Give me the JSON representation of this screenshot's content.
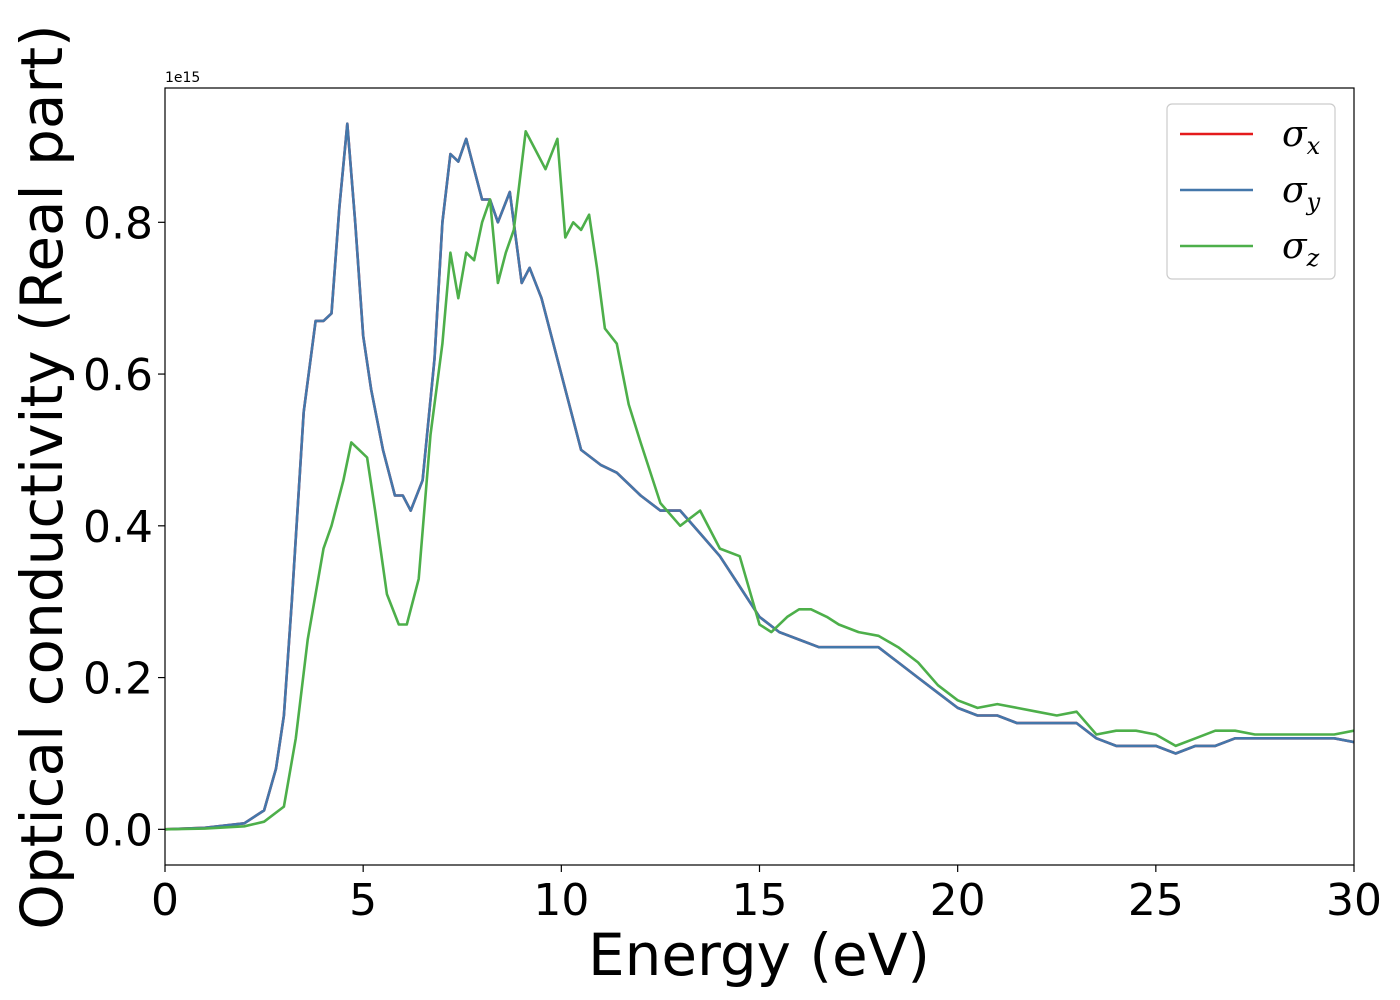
{
  "chart_data": {
    "type": "line",
    "xlabel": "Energy (eV)",
    "ylabel": "Optical conductivity (Real part)",
    "y_offset_text": "1e15",
    "xlim": [
      0,
      30
    ],
    "ylim": [
      -0.047,
      0.977
    ],
    "xticks": [
      0,
      5,
      10,
      15,
      20,
      25,
      30
    ],
    "xtick_labels": [
      "0",
      "5",
      "10",
      "15",
      "20",
      "25",
      "30"
    ],
    "yticks": [
      0.0,
      0.2,
      0.4,
      0.6,
      0.8
    ],
    "ytick_labels": [
      "0.0",
      "0.2",
      "0.4",
      "0.6",
      "0.8"
    ],
    "grid": false,
    "legend_position": "top-right",
    "series": [
      {
        "name": "σx",
        "legend_symbol": "σ",
        "legend_subscript": "x",
        "color": "#e41a1c",
        "x": [
          0,
          1,
          2,
          2.5,
          2.8,
          3.0,
          3.2,
          3.5,
          3.8,
          4.0,
          4.2,
          4.4,
          4.6,
          4.8,
          5.0,
          5.2,
          5.5,
          5.8,
          6.0,
          6.2,
          6.5,
          6.8,
          7.0,
          7.2,
          7.4,
          7.6,
          7.8,
          8.0,
          8.2,
          8.4,
          8.7,
          9.0,
          9.2,
          9.5,
          10.0,
          10.5,
          11.0,
          11.4,
          12.0,
          12.5,
          13.0,
          13.5,
          14.0,
          14.5,
          15.0,
          15.5,
          16.0,
          16.5,
          17.0,
          17.5,
          18.0,
          18.5,
          19.0,
          19.5,
          20.0,
          20.5,
          21.0,
          21.5,
          22.0,
          22.5,
          23.0,
          23.5,
          24.0,
          24.5,
          25.0,
          25.5,
          26.0,
          26.5,
          27.0,
          27.5,
          28.0,
          28.5,
          29.0,
          29.5,
          30.0
        ],
        "y": [
          0.0,
          0.002,
          0.008,
          0.025,
          0.08,
          0.15,
          0.3,
          0.55,
          0.67,
          0.67,
          0.68,
          0.82,
          0.93,
          0.8,
          0.65,
          0.58,
          0.5,
          0.44,
          0.44,
          0.42,
          0.46,
          0.62,
          0.8,
          0.89,
          0.88,
          0.91,
          0.87,
          0.83,
          0.83,
          0.8,
          0.84,
          0.72,
          0.74,
          0.7,
          0.6,
          0.5,
          0.48,
          0.47,
          0.44,
          0.42,
          0.42,
          0.39,
          0.36,
          0.32,
          0.28,
          0.26,
          0.25,
          0.24,
          0.24,
          0.24,
          0.24,
          0.22,
          0.2,
          0.18,
          0.16,
          0.15,
          0.15,
          0.14,
          0.14,
          0.14,
          0.14,
          0.12,
          0.11,
          0.11,
          0.11,
          0.1,
          0.11,
          0.11,
          0.12,
          0.12,
          0.12,
          0.12,
          0.12,
          0.12,
          0.115
        ]
      },
      {
        "name": "σy",
        "legend_symbol": "σ",
        "legend_subscript": "y",
        "color": "#4477aa",
        "x": [
          0,
          1,
          2,
          2.5,
          2.8,
          3.0,
          3.2,
          3.5,
          3.8,
          4.0,
          4.2,
          4.4,
          4.6,
          4.8,
          5.0,
          5.2,
          5.5,
          5.8,
          6.0,
          6.2,
          6.5,
          6.8,
          7.0,
          7.2,
          7.4,
          7.6,
          7.8,
          8.0,
          8.2,
          8.4,
          8.7,
          9.0,
          9.2,
          9.5,
          10.0,
          10.5,
          11.0,
          11.4,
          12.0,
          12.5,
          13.0,
          13.5,
          14.0,
          14.5,
          15.0,
          15.5,
          16.0,
          16.5,
          17.0,
          17.5,
          18.0,
          18.5,
          19.0,
          19.5,
          20.0,
          20.5,
          21.0,
          21.5,
          22.0,
          22.5,
          23.0,
          23.5,
          24.0,
          24.5,
          25.0,
          25.5,
          26.0,
          26.5,
          27.0,
          27.5,
          28.0,
          28.5,
          29.0,
          29.5,
          30.0
        ],
        "y": [
          0.0,
          0.002,
          0.008,
          0.025,
          0.08,
          0.15,
          0.3,
          0.55,
          0.67,
          0.67,
          0.68,
          0.82,
          0.93,
          0.8,
          0.65,
          0.58,
          0.5,
          0.44,
          0.44,
          0.42,
          0.46,
          0.62,
          0.8,
          0.89,
          0.88,
          0.91,
          0.87,
          0.83,
          0.83,
          0.8,
          0.84,
          0.72,
          0.74,
          0.7,
          0.6,
          0.5,
          0.48,
          0.47,
          0.44,
          0.42,
          0.42,
          0.39,
          0.36,
          0.32,
          0.28,
          0.26,
          0.25,
          0.24,
          0.24,
          0.24,
          0.24,
          0.22,
          0.2,
          0.18,
          0.16,
          0.15,
          0.15,
          0.14,
          0.14,
          0.14,
          0.14,
          0.12,
          0.11,
          0.11,
          0.11,
          0.1,
          0.11,
          0.11,
          0.12,
          0.12,
          0.12,
          0.12,
          0.12,
          0.12,
          0.115
        ]
      },
      {
        "name": "σz",
        "legend_symbol": "σ",
        "legend_subscript": "z",
        "color": "#4daf4a",
        "x": [
          0,
          1,
          2,
          2.5,
          3.0,
          3.3,
          3.6,
          4.0,
          4.2,
          4.5,
          4.7,
          4.9,
          5.1,
          5.3,
          5.6,
          5.9,
          6.1,
          6.4,
          6.7,
          7.0,
          7.2,
          7.4,
          7.6,
          7.8,
          8.0,
          8.2,
          8.4,
          8.6,
          8.8,
          9.1,
          9.3,
          9.6,
          9.9,
          10.1,
          10.3,
          10.5,
          10.7,
          10.9,
          11.1,
          11.4,
          11.7,
          12.0,
          12.5,
          13.0,
          13.5,
          14.0,
          14.5,
          15.0,
          15.3,
          15.7,
          16.0,
          16.3,
          16.7,
          17.0,
          17.5,
          18.0,
          18.5,
          19.0,
          19.5,
          20.0,
          20.5,
          21.0,
          21.5,
          22.0,
          22.5,
          23.0,
          23.5,
          24.0,
          24.5,
          25.0,
          25.5,
          26.0,
          26.5,
          27.0,
          27.5,
          28.0,
          28.5,
          29.0,
          29.5,
          30.0
        ],
        "y": [
          0.0,
          0.001,
          0.004,
          0.01,
          0.03,
          0.12,
          0.25,
          0.37,
          0.4,
          0.46,
          0.51,
          0.5,
          0.49,
          0.42,
          0.31,
          0.27,
          0.27,
          0.33,
          0.52,
          0.64,
          0.76,
          0.7,
          0.76,
          0.75,
          0.8,
          0.83,
          0.72,
          0.76,
          0.79,
          0.92,
          0.9,
          0.87,
          0.91,
          0.78,
          0.8,
          0.79,
          0.81,
          0.74,
          0.66,
          0.64,
          0.56,
          0.51,
          0.43,
          0.4,
          0.42,
          0.37,
          0.36,
          0.27,
          0.26,
          0.28,
          0.29,
          0.29,
          0.28,
          0.27,
          0.26,
          0.255,
          0.24,
          0.22,
          0.19,
          0.17,
          0.16,
          0.165,
          0.16,
          0.155,
          0.15,
          0.155,
          0.125,
          0.13,
          0.13,
          0.125,
          0.11,
          0.12,
          0.13,
          0.13,
          0.125,
          0.125,
          0.125,
          0.125,
          0.125,
          0.13
        ]
      }
    ]
  }
}
